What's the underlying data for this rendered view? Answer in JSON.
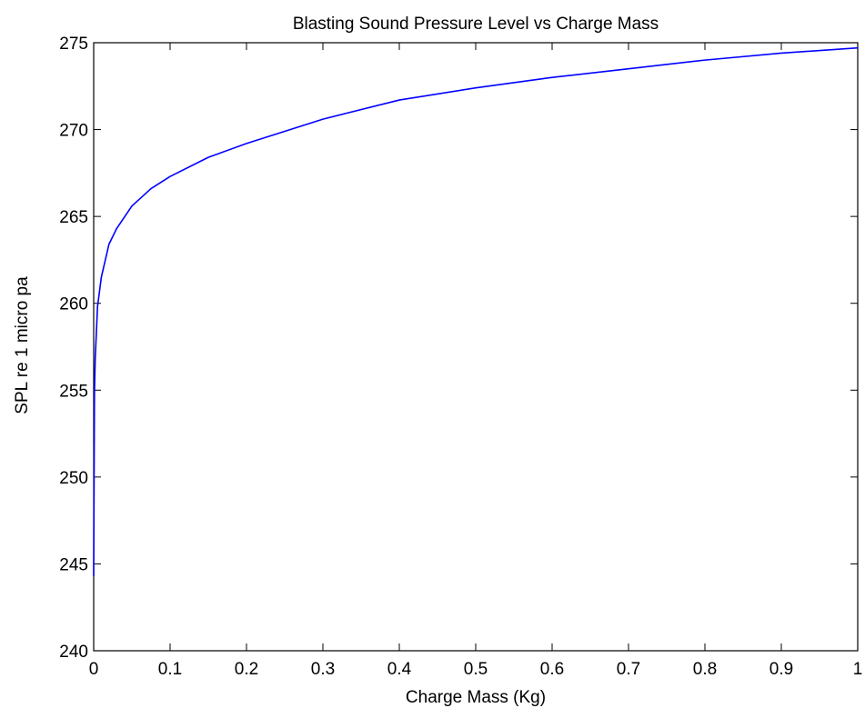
{
  "chart_data": {
    "type": "line",
    "title": "Blasting Sound Pressure Level vs Charge Mass",
    "xlabel": "Charge Mass (Kg)",
    "ylabel": "SPL re 1 micro pa",
    "xlim": [
      0,
      1
    ],
    "ylim": [
      240,
      275
    ],
    "xticks": [
      0,
      0.1,
      0.2,
      0.3,
      0.4,
      0.5,
      0.6,
      0.7,
      0.8,
      0.9,
      1
    ],
    "xtick_labels": [
      "0",
      "0.1",
      "0.2",
      "0.3",
      "0.4",
      "0.5",
      "0.6",
      "0.7",
      "0.8",
      "0.9",
      "1"
    ],
    "yticks": [
      240,
      245,
      250,
      255,
      260,
      265,
      270,
      275
    ],
    "ytick_labels": [
      "240",
      "245",
      "250",
      "255",
      "260",
      "265",
      "270",
      "275"
    ],
    "grid": false,
    "line_color": "#0000ff",
    "series": [
      {
        "x": [
          0.0,
          0.001,
          0.002,
          0.005,
          0.01,
          0.02,
          0.03,
          0.05,
          0.075,
          0.1,
          0.15,
          0.2,
          0.25,
          0.3,
          0.4,
          0.5,
          0.6,
          0.7,
          0.8,
          0.9,
          1.0
        ],
        "values": [
          244.3,
          254.8,
          256.8,
          259.8,
          261.5,
          263.4,
          264.3,
          265.6,
          266.6,
          267.3,
          268.4,
          269.2,
          269.9,
          270.6,
          271.7,
          272.4,
          273.0,
          273.5,
          274.0,
          274.4,
          274.7
        ]
      }
    ]
  }
}
